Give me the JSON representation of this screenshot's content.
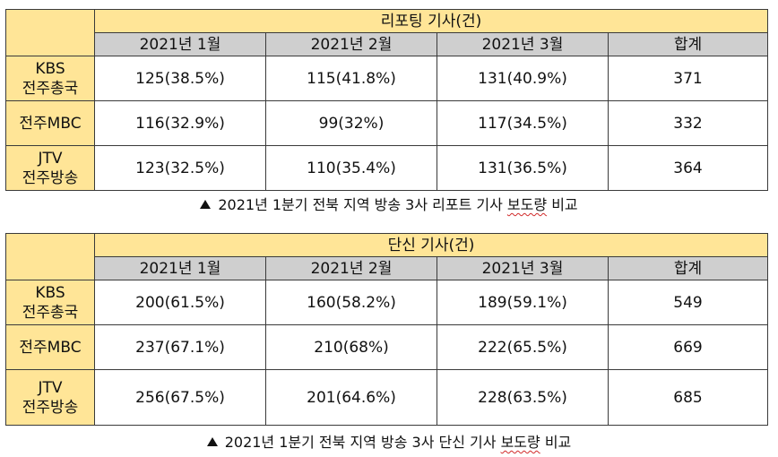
{
  "tables": [
    {
      "title": "리포팅 기사(건)",
      "columns": [
        "2021년 1월",
        "2021년 2월",
        "2021년 3월",
        "합계"
      ],
      "rows": [
        {
          "label_line1": "KBS",
          "label_line2": "전주총국",
          "cells": [
            "125(38.5%)",
            "115(41.8%)",
            "131(40.9%)",
            "371"
          ]
        },
        {
          "label_line1": "전주MBC",
          "label_line2": "",
          "cells": [
            "116(32.9%)",
            "99(32%)",
            "117(34.5%)",
            "332"
          ]
        },
        {
          "label_line1": "JTV",
          "label_line2": "전주방송",
          "cells": [
            "123(32.5%)",
            "110(35.4%)",
            "131(36.5%)",
            "364"
          ]
        }
      ],
      "caption_main": "2021년 1분기 전북 지역 방송 3사 리포트 기사",
      "caption_tail": "보도량",
      "caption_end": "비교"
    },
    {
      "title": "단신 기사(건)",
      "columns": [
        "2021년 1월",
        "2021년 2월",
        "2021년 3월",
        "합계"
      ],
      "rows": [
        {
          "label_line1": "KBS",
          "label_line2": "전주총국",
          "cells": [
            "200(61.5%)",
            "160(58.2%)",
            "189(59.1%)",
            "549"
          ]
        },
        {
          "label_line1": "전주MBC",
          "label_line2": "",
          "cells": [
            "237(67.1%)",
            "210(68%)",
            "222(65.5%)",
            "669"
          ]
        },
        {
          "label_line1": "JTV",
          "label_line2": "전주방송",
          "cells": [
            "256(67.5%)",
            "201(64.6%)",
            "228(63.5%)",
            "685"
          ]
        }
      ],
      "caption_main": "2021년 1분기 전북 지역 방송 3사 단신 기사",
      "caption_tail": "보도량",
      "caption_end": "비교"
    }
  ],
  "colors": {
    "label_fill": "#ffe597",
    "header_fill": "#cfcfcf",
    "border": "#3a3a3a"
  },
  "icons": {
    "caption_marker": "up-triangle-icon"
  }
}
